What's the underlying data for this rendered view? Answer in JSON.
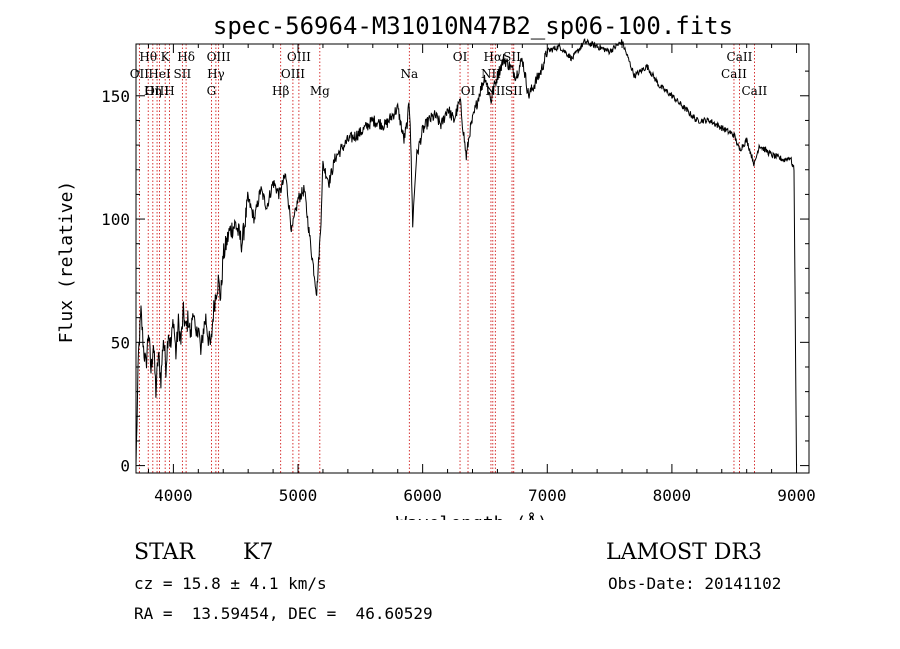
{
  "chart_data": {
    "type": "line",
    "title": "spec-56964-M31010N47B2_sp06-100.fits",
    "xlabel": "Wavelength (Å)",
    "ylabel": "Flux (relative)",
    "xlim": [
      3700,
      9100
    ],
    "ylim": [
      -3,
      171
    ],
    "x_ticks": [
      4000,
      5000,
      6000,
      7000,
      8000,
      9000
    ],
    "y_ticks": [
      0,
      50,
      100,
      150
    ],
    "grid": false,
    "series": [
      {
        "name": "spectrum",
        "x": [
          3700,
          3720,
          3740,
          3760,
          3780,
          3800,
          3820,
          3840,
          3860,
          3880,
          3900,
          3920,
          3940,
          3960,
          3980,
          4000,
          4020,
          4040,
          4060,
          4080,
          4100,
          4120,
          4140,
          4160,
          4180,
          4200,
          4220,
          4240,
          4260,
          4280,
          4300,
          4320,
          4340,
          4360,
          4380,
          4400,
          4450,
          4500,
          4550,
          4600,
          4650,
          4700,
          4750,
          4800,
          4850,
          4900,
          4950,
          5000,
          5050,
          5100,
          5150,
          5180,
          5200,
          5250,
          5300,
          5400,
          5500,
          5600,
          5700,
          5800,
          5850,
          5880,
          5890,
          5900,
          5920,
          5950,
          6000,
          6050,
          6100,
          6150,
          6200,
          6250,
          6300,
          6350,
          6380,
          6400,
          6450,
          6500,
          6550,
          6563,
          6600,
          6650,
          6700,
          6750,
          6800,
          6850,
          6900,
          6950,
          7000,
          7100,
          7200,
          7300,
          7400,
          7500,
          7600,
          7700,
          7800,
          7900,
          8000,
          8100,
          8200,
          8300,
          8400,
          8500,
          8542,
          8600,
          8662,
          8700,
          8800,
          8900,
          8950,
          8980,
          9000
        ],
        "values": [
          0,
          45,
          62,
          48,
          40,
          55,
          38,
          50,
          30,
          45,
          35,
          52,
          40,
          55,
          48,
          60,
          45,
          58,
          50,
          62,
          55,
          60,
          52,
          65,
          50,
          58,
          45,
          55,
          60,
          52,
          48,
          62,
          70,
          75,
          68,
          85,
          95,
          98,
          90,
          108,
          100,
          112,
          105,
          115,
          110,
          118,
          95,
          108,
          112,
          90,
          70,
          95,
          122,
          115,
          125,
          132,
          135,
          140,
          138,
          145,
          132,
          140,
          148,
          140,
          98,
          125,
          136,
          140,
          142,
          138,
          145,
          140,
          148,
          125,
          136,
          140,
          150,
          158,
          148,
          152,
          158,
          165,
          162,
          158,
          165,
          150,
          155,
          160,
          168,
          170,
          165,
          172,
          170,
          168,
          172,
          158,
          162,
          154,
          150,
          145,
          140,
          140,
          137,
          134,
          128,
          132,
          122,
          130,
          126,
          124,
          125,
          120,
          0
        ]
      }
    ],
    "line_labels": [
      {
        "name": "Hθ",
        "wavelength": 3798,
        "row": 1
      },
      {
        "name": "OII",
        "wavelength": 3727,
        "row": 2
      },
      {
        "name": "OIII",
        "wavelength": 3869,
        "row": 3
      },
      {
        "name": "K",
        "wavelength": 3934,
        "row": 1
      },
      {
        "name": "HeI",
        "wavelength": 3889,
        "row": 2
      },
      {
        "name": "Hη",
        "wavelength": 3835,
        "row": 3
      },
      {
        "name": "SII",
        "wavelength": 4072,
        "row": 2
      },
      {
        "name": "H",
        "wavelength": 3969,
        "row": 3
      },
      {
        "name": "Hδ",
        "wavelength": 4102,
        "row": 1
      },
      {
        "name": "OIII",
        "wavelength": 4363,
        "row": 1
      },
      {
        "name": "Hγ",
        "wavelength": 4341,
        "row": 2
      },
      {
        "name": "G",
        "wavelength": 4305,
        "row": 3
      },
      {
        "name": "OIII",
        "wavelength": 5007,
        "row": 1
      },
      {
        "name": "OIII",
        "wavelength": 4959,
        "row": 2
      },
      {
        "name": "Hβ",
        "wavelength": 4861,
        "row": 3
      },
      {
        "name": "Mg",
        "wavelength": 5175,
        "row": 3
      },
      {
        "name": "Na",
        "wavelength": 5893,
        "row": 2
      },
      {
        "name": "OI",
        "wavelength": 6300,
        "row": 1
      },
      {
        "name": "OI",
        "wavelength": 6364,
        "row": 3
      },
      {
        "name": "Hα",
        "wavelength": 6563,
        "row": 1
      },
      {
        "name": "SII",
        "wavelength": 6717,
        "row": 1
      },
      {
        "name": "NII",
        "wavelength": 6548,
        "row": 2
      },
      {
        "name": "NII",
        "wavelength": 6583,
        "row": 3
      },
      {
        "name": "SII",
        "wavelength": 6731,
        "row": 3
      },
      {
        "name": "CaII",
        "wavelength": 8542,
        "row": 1
      },
      {
        "name": "CaII",
        "wavelength": 8498,
        "row": 2
      },
      {
        "name": "CaII",
        "wavelength": 8662,
        "row": 3
      }
    ]
  },
  "info": {
    "object_class": "STAR",
    "subclass": "K7",
    "survey": "LAMOST DR3",
    "redshift": "cz = 15.8 ± 4.1 km/s",
    "obs_date": "Obs-Date: 20141102",
    "coords": "RA =  13.59454, DEC =  46.60529"
  },
  "colors": {
    "axis": "#000000",
    "spectrum": "#000000",
    "line_marker": "#cc0000",
    "background": "#ffffff"
  }
}
